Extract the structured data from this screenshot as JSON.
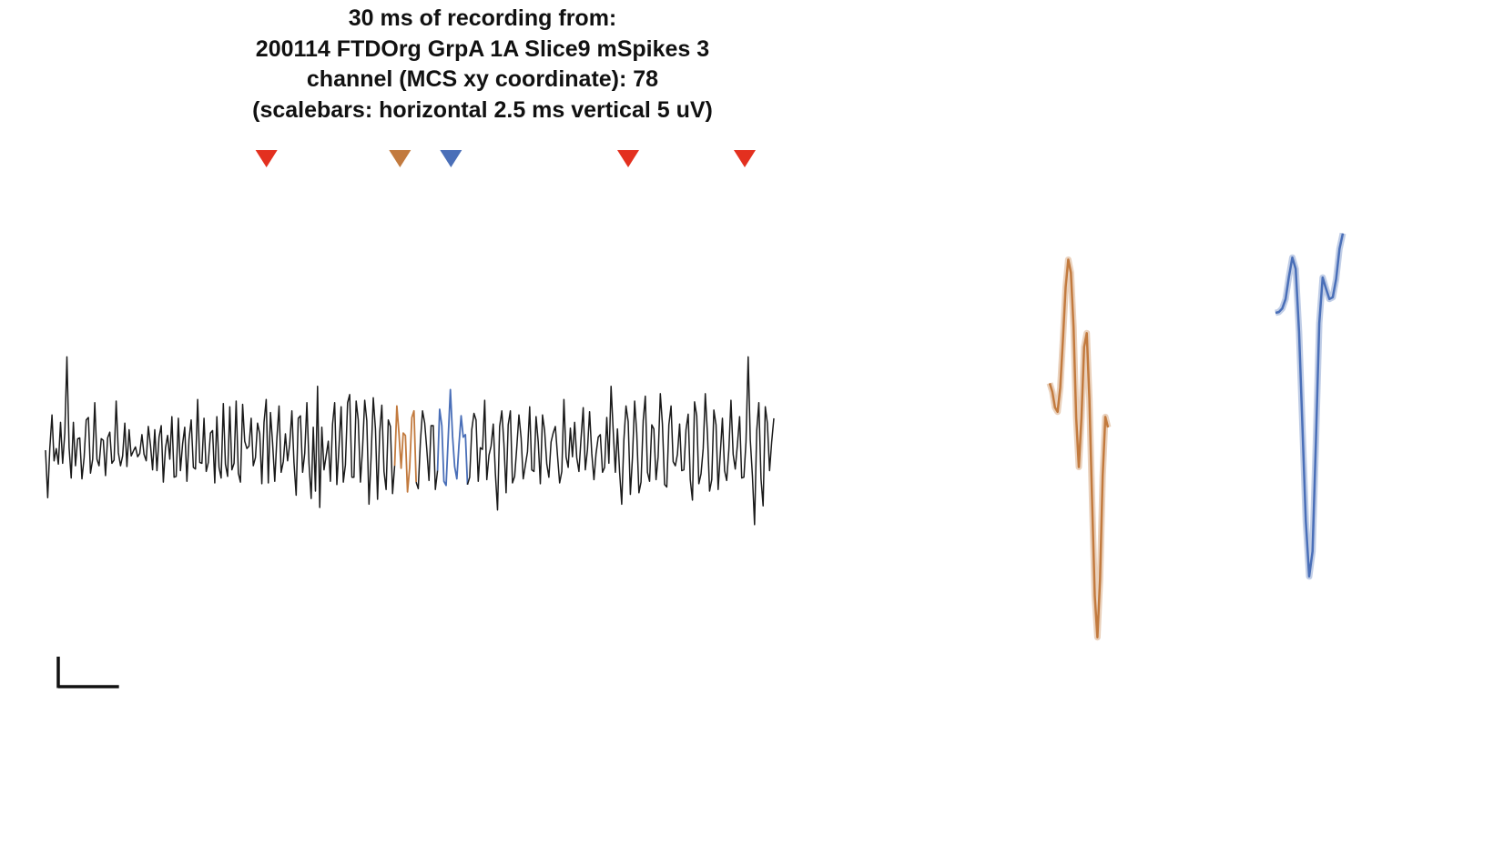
{
  "title_lines": [
    "30 ms of recording from:",
    "200114 FTDOrg GrpA 1A Slice9 mSpikes 3",
    "channel (MCS xy coordinate): 78",
    "(scalebars: horizontal 2.5 ms vertical 5 uV)"
  ],
  "colors": {
    "trace": "#1a1a1a",
    "unit_1": "#c27a3e",
    "unit_2": "#4a6fb8",
    "unsorted_marker": "#e3301f",
    "scalebar": "#111111"
  },
  "chart_data": [
    {
      "type": "line",
      "title": "",
      "xlabel": "",
      "ylabel": "",
      "x_unit": "ms",
      "y_unit": "uV",
      "xlim": [
        0,
        30
      ],
      "grid": false,
      "scalebars": {
        "horizontal_ms": 2.5,
        "vertical_uV": 5
      },
      "spike_markers": [
        {
          "time_ms": 9.1,
          "unit": "unsorted"
        },
        {
          "time_ms": 14.6,
          "unit": "unit_1"
        },
        {
          "time_ms": 16.7,
          "unit": "unit_2"
        },
        {
          "time_ms": 24.0,
          "unit": "unsorted"
        },
        {
          "time_ms": 28.8,
          "unit": "unsorted"
        }
      ],
      "colored_segments": [
        {
          "unit": "unit_1",
          "start_ms": 14.4,
          "end_ms": 15.3
        },
        {
          "unit": "unit_2",
          "start_ms": 16.2,
          "end_ms": 17.4
        }
      ],
      "trace_uV": [
        0.0,
        -5.8,
        0.2,
        4.3,
        -1.3,
        0.2,
        -1.7,
        3.4,
        -1.6,
        2.1,
        11.4,
        0.3,
        -3.4,
        3.4,
        -1.9,
        1.4,
        1.5,
        -3.5,
        -0.9,
        3.7,
        4.0,
        -2.8,
        -1.1,
        5.8,
        -1.1,
        -1.9,
        1.4,
        1.2,
        -3.1,
        1.5,
        2.2,
        -1.6,
        -1.2,
        6.0,
        -0.3,
        -1.9,
        -0.7,
        3.3,
        -2.0,
        2.5,
        -0.7,
        -0.1,
        0.4,
        -0.8,
        -0.4,
        1.9,
        -0.5,
        -1.3,
        2.9,
        0.6,
        -2.4,
        2.5,
        -2.5,
        1.6,
        3.0,
        -3.9,
        0.3,
        1.8,
        -1.1,
        4.1,
        -3.3,
        -3.2,
        3.9,
        -2.5,
        0.8,
        2.8,
        -3.8,
        1.3,
        3.7,
        -2.1,
        -2.3,
        6.2,
        -1.5,
        -1.6,
        3.9,
        -2.6,
        -1.5,
        2.1,
        2.4,
        -4.0,
        4.1,
        -2.1,
        -3.4,
        5.7,
        -1.7,
        -3.2,
        5.3,
        -2.4,
        -1.6,
        6.0,
        -2.8,
        -3.9,
        5.6,
        1.1,
        0.2,
        0.5,
        3.9,
        -1.9,
        -0.9,
        3.3,
        2.0,
        -4.1,
        3.4,
        6.2,
        -4.0,
        4.6,
        0.9,
        -3.8,
        1.4,
        5.4,
        -2.7,
        -1.4,
        2.0,
        -1.3,
        0.7,
        4.8,
        -1.5,
        -5.5,
        3.9,
        4.2,
        -2.7,
        -0.4,
        5.8,
        -1.6,
        -5.9,
        2.8,
        -5.0,
        7.8,
        -7.0,
        2.8,
        -2.4,
        -0.7,
        1.1,
        -3.8,
        3.2,
        5.8,
        -4.2,
        0.5,
        5.3,
        -3.9,
        -1.8,
        5.8,
        6.8,
        -3.3,
        -3.3,
        6.0,
        3.7,
        -3.9,
        0.1,
        6.1,
        3.6,
        -6.6,
        -0.9,
        6.4,
        2.6,
        -6.0,
        2.2,
        5.5,
        -2.6,
        -4.8,
        3.7,
        2.9,
        -5.3,
        -1.9,
        5.4,
        2.1,
        -2.2,
        2.1,
        1.8,
        -5.1,
        -2.1,
        4.0,
        4.8,
        -3.9,
        -4.7,
        1.1,
        4.8,
        3.3,
        0.1,
        -3.7,
        3.0,
        3.0,
        -4.8,
        -2.5,
        5.0,
        3.0,
        -3.8,
        -4.3,
        1.7,
        7.4,
        1.7,
        -2.0,
        -3.5,
        0.6,
        4.2,
        1.6,
        1.9,
        -4.2,
        -3.3,
        2.5,
        4.5,
        3.7,
        -3.8,
        0.3,
        0.1,
        6.1,
        -3.6,
        -0.6,
        0.5,
        3.2,
        -2.8,
        -7.3,
        2.9,
        4.8,
        0.8,
        -5.2,
        3.1,
        4.8,
        -4.0,
        -3.2,
        0.3,
        4.3,
        1.5,
        -3.5,
        -1.8,
        -0.2,
        5.3,
        -2.4,
        -2.6,
        4.1,
        1.0,
        -4.1,
        4.3,
        2.4,
        -1.7,
        -3.3,
        1.0,
        2.1,
        2.9,
        -0.7,
        -4.0,
        -2.6,
        6.2,
        -0.8,
        -2.1,
        2.7,
        -0.8,
        3.4,
        -0.9,
        -2.6,
        1.4,
        5.2,
        -2.4,
        0.1,
        4.7,
        -0.4,
        -3.6,
        -0.4,
        1.6,
        1.9,
        -2.7,
        -2.1,
        4.0,
        -1.6,
        7.8,
        2.5,
        -2.7,
        2.6,
        -2.7,
        -6.6,
        1.3,
        5.4,
        3.5,
        -5.4,
        -0.9,
        6.0,
        2.1,
        -5.2,
        -3.9,
        3.6,
        6.6,
        -2.7,
        -3.8,
        3.1,
        2.6,
        -3.6,
        -0.8,
        6.9,
        3.2,
        -4.2,
        -4.5,
        3.1,
        5.4,
        -1.4,
        -1.9,
        -0.5,
        3.2,
        -2.5,
        -2.4,
        2.5,
        4.4,
        -3.6,
        -6.1,
        5.9,
        4.2,
        -4.1,
        -2.9,
        0.2,
        6.9,
        1.9,
        -5.0,
        -3.6,
        4.9,
        3.1,
        -4.8,
        -0.4,
        3.9,
        -2.5,
        -3.7,
        0.1,
        6.1,
        -0.5,
        -2.3,
        0.7,
        4.1,
        -3.4,
        -3.3,
        1.0,
        11.4,
        1.3,
        -3.2,
        -9.1,
        2.4,
        5.8,
        -3.5,
        -6.8,
        5.3,
        3.3,
        -2.5,
        1.0,
        3.9
      ]
    },
    {
      "type": "line",
      "title": "",
      "unit": "unit_1",
      "y_unit": "uV",
      "waveform_uV": [
        4.8,
        3.8,
        2.0,
        1.5,
        4.3,
        9.8,
        15.9,
        19.1,
        17.6,
        11.3,
        0.8,
        -4.9,
        0.8,
        9.0,
        10.6,
        3.0,
        -8.6,
        -19.8,
        -24.6,
        -17.9,
        -5.9,
        0.9,
        -0.3
      ]
    },
    {
      "type": "line",
      "title": "",
      "unit": "unit_2",
      "y_unit": "uV",
      "waveform_uV": [
        2.0,
        2.1,
        2.5,
        3.6,
        6.2,
        8.4,
        7.1,
        -0.2,
        -11.2,
        -22.1,
        -28.5,
        -25.6,
        -12.9,
        0.8,
        6.1,
        4.8,
        3.6,
        3.8,
        5.9,
        9.4,
        11.2
      ]
    }
  ]
}
